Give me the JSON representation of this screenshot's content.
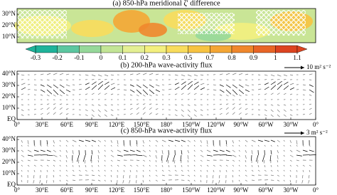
{
  "panels": [
    {
      "title": "(a) 850-hPa meridional ζ' difference",
      "ylabels": [
        "30°N",
        "20°N",
        "10°N"
      ]
    },
    {
      "title": "(b) 200-hPa wave-activity flux",
      "ylabels": [
        "40°N",
        "30°N",
        "20°N",
        "10°N",
        "EQ"
      ],
      "reference": "10 m² s⁻²"
    },
    {
      "title": "(c) 850-hPa wave-activity flux",
      "ylabels": [
        "40°N",
        "30°N",
        "20°N",
        "10°N",
        "EQ"
      ],
      "reference": "3 m² s⁻²"
    }
  ],
  "xlabels": [
    "0°",
    "30°E",
    "60°E",
    "90°E",
    "120°E",
    "150°E",
    "180°",
    "150°W",
    "120°W",
    "90°W",
    "60°W",
    "30°W",
    "0°"
  ],
  "colorbar": {
    "ticks": [
      -0.3,
      -0.2,
      -0.1,
      0,
      0.1,
      0.2,
      0.3,
      0.5,
      0.7,
      0.8,
      0.9,
      1,
      1.1
    ],
    "colors": [
      "#1fb39a",
      "#5cc7a0",
      "#96d89a",
      "#c3e596",
      "#e4ef93",
      "#f3ef7e",
      "#f8dc5c",
      "#f7c341",
      "#f4a634",
      "#ef872c",
      "#e86526",
      "#dc4420"
    ]
  }
}
